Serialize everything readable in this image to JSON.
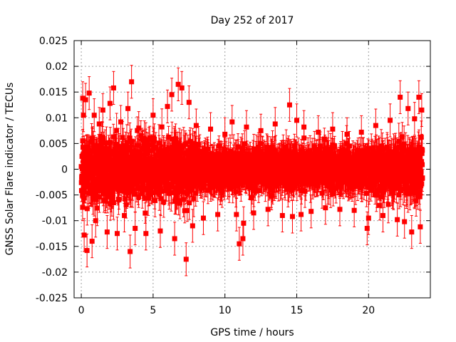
{
  "chart_data": {
    "type": "scatter",
    "title": "Day 252 of 2017",
    "xlabel": "GPS time / hours",
    "ylabel": "GNSS Solar Flare indicator / TECUs",
    "xlim": [
      -0.5,
      24.3
    ],
    "ylim": [
      -0.025,
      0.025
    ],
    "x_ticks": [
      0,
      5,
      10,
      15,
      20
    ],
    "y_ticks": [
      -0.025,
      -0.02,
      -0.015,
      -0.01,
      -0.005,
      0,
      0.005,
      0.01,
      0.015,
      0.02,
      0.025
    ],
    "x_tick_labels": [
      "0",
      "5",
      "10",
      "15",
      "20"
    ],
    "y_tick_labels": [
      "-0.025",
      "-0.02",
      "-0.015",
      "-0.01",
      "-0.005",
      "0",
      "0.005",
      "0.01",
      "0.015",
      "0.02",
      "0.025"
    ],
    "grid": true,
    "marker_color": "#ff0000",
    "series": [
      {
        "error_bars": true,
        "x_range_hours": [
          0.0,
          23.75
        ],
        "notes": "dense noise cloud of indicator values around zero with error bars",
        "points": [
          [
            0.05,
            0.0025
          ],
          [
            0.1,
            0.0138
          ],
          [
            0.15,
            0.0105
          ],
          [
            0.2,
            -0.0128
          ],
          [
            0.3,
            0.0135
          ],
          [
            0.4,
            -0.0158
          ],
          [
            0.55,
            0.0148
          ],
          [
            0.75,
            -0.014
          ],
          [
            0.9,
            0.0105
          ],
          [
            1.0,
            -0.01
          ],
          [
            1.25,
            0.0088
          ],
          [
            1.5,
            0.0115
          ],
          [
            1.8,
            -0.0122
          ],
          [
            2.0,
            0.0128
          ],
          [
            2.25,
            0.0158
          ],
          [
            2.5,
            -0.0125
          ],
          [
            2.75,
            0.0092
          ],
          [
            3.0,
            -0.009
          ],
          [
            3.25,
            0.0118
          ],
          [
            3.4,
            -0.016
          ],
          [
            3.5,
            0.017
          ],
          [
            3.75,
            -0.0115
          ],
          [
            4.0,
            0.008
          ],
          [
            4.5,
            -0.0125
          ],
          [
            5.0,
            0.0105
          ],
          [
            5.5,
            -0.012
          ],
          [
            6.0,
            0.0122
          ],
          [
            6.3,
            0.0145
          ],
          [
            6.5,
            -0.0135
          ],
          [
            6.75,
            0.0165
          ],
          [
            7.0,
            0.0158
          ],
          [
            7.3,
            -0.0175
          ],
          [
            7.5,
            0.013
          ],
          [
            7.75,
            -0.011
          ],
          [
            8.0,
            0.0085
          ],
          [
            8.5,
            -0.0095
          ],
          [
            9.0,
            0.0078
          ],
          [
            9.5,
            -0.0088
          ],
          [
            10.0,
            0.0068
          ],
          [
            10.5,
            0.0092
          ],
          [
            10.8,
            -0.0088
          ],
          [
            11.0,
            -0.0145
          ],
          [
            11.25,
            -0.0135
          ],
          [
            11.3,
            -0.0105
          ],
          [
            11.5,
            0.0082
          ],
          [
            12.0,
            -0.0085
          ],
          [
            12.5,
            0.0075
          ],
          [
            13.0,
            -0.0078
          ],
          [
            13.5,
            0.0088
          ],
          [
            14.0,
            -0.009
          ],
          [
            14.5,
            0.0125
          ],
          [
            14.7,
            -0.0092
          ],
          [
            15.0,
            0.0095
          ],
          [
            15.3,
            -0.0088
          ],
          [
            15.5,
            0.0082
          ],
          [
            16.0,
            -0.0082
          ],
          [
            16.5,
            0.0072
          ],
          [
            17.0,
            -0.0075
          ],
          [
            17.5,
            0.0078
          ],
          [
            18.0,
            -0.0078
          ],
          [
            18.5,
            0.0068
          ],
          [
            19.0,
            -0.008
          ],
          [
            19.5,
            0.0072
          ],
          [
            19.9,
            -0.0115
          ],
          [
            20.0,
            -0.0095
          ],
          [
            20.5,
            0.0085
          ],
          [
            21.0,
            -0.009
          ],
          [
            21.5,
            0.0095
          ],
          [
            22.0,
            -0.0098
          ],
          [
            22.2,
            0.014
          ],
          [
            22.5,
            -0.0102
          ],
          [
            22.75,
            0.0118
          ],
          [
            23.0,
            -0.0122
          ],
          [
            23.2,
            0.0098
          ],
          [
            23.5,
            0.014
          ],
          [
            23.6,
            -0.0112
          ],
          [
            23.7,
            0.0115
          ]
        ]
      }
    ]
  }
}
